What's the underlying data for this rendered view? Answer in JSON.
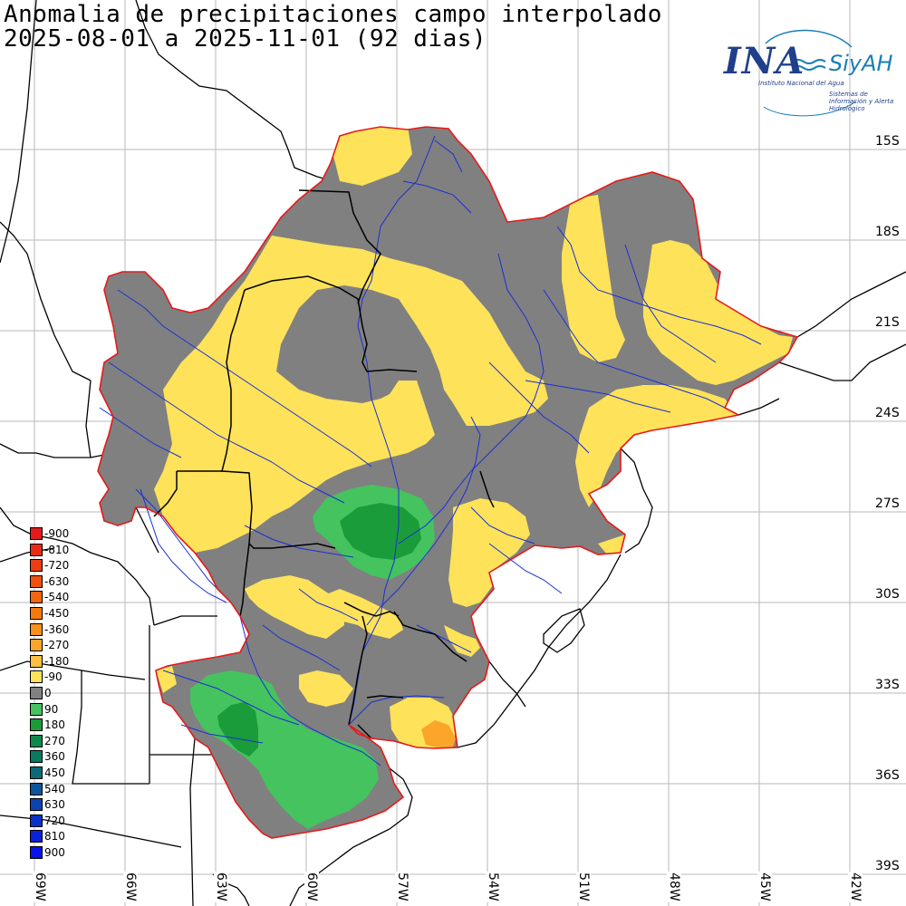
{
  "title": {
    "line1": "Anomalia de precipitaciones campo interpolado",
    "line2": "2025-08-01 a 2025-11-01 (92 dias)"
  },
  "logo": {
    "name": "INA",
    "system": "SiyAH",
    "institute": "Instituto Nacional del Agua",
    "system_full": "Sistemas de Información y Alerta Hidrológico",
    "colors": {
      "primary": "#1f3f8a",
      "accent": "#1b7fb5"
    }
  },
  "latitudes": [
    "15S",
    "18S",
    "21S",
    "24S",
    "27S",
    "30S",
    "33S",
    "36S",
    "39S"
  ],
  "longitudes": [
    "69W",
    "66W",
    "63W",
    "60W",
    "57W",
    "54W",
    "51W",
    "48W",
    "45W",
    "42W"
  ],
  "legend": [
    {
      "label": "-900",
      "color": "#e41a1c"
    },
    {
      "label": "-810",
      "color": "#ea2a16"
    },
    {
      "label": "-720",
      "color": "#ee3d12"
    },
    {
      "label": "-630",
      "color": "#f1510f"
    },
    {
      "label": "-540",
      "color": "#f4650d"
    },
    {
      "label": "-450",
      "color": "#f6790d"
    },
    {
      "label": "-360",
      "color": "#f98f1c"
    },
    {
      "label": "-270",
      "color": "#fba52b"
    },
    {
      "label": "-180",
      "color": "#fcbf3f"
    },
    {
      "label": "-90",
      "color": "#fde25a"
    },
    {
      "label": "0",
      "color": "#808080"
    },
    {
      "label": "90",
      "color": "#45c35e"
    },
    {
      "label": "180",
      "color": "#1a9c3a"
    },
    {
      "label": "270",
      "color": "#0d8a4b"
    },
    {
      "label": "360",
      "color": "#0a7a5f"
    },
    {
      "label": "450",
      "color": "#0a6a78"
    },
    {
      "label": "540",
      "color": "#0b5598"
    },
    {
      "label": "630",
      "color": "#0b43b3"
    },
    {
      "label": "720",
      "color": "#0a30c9"
    },
    {
      "label": "810",
      "color": "#0a22d9"
    },
    {
      "label": "900",
      "color": "#0713ee"
    }
  ],
  "colors": {
    "basin_border": "#e41a1c",
    "rivers": "#1b2fd6",
    "dry": "#fde25a",
    "neutral": "#808080",
    "wet": "#45c35e",
    "very_wet": "#1a9c3a",
    "very_dry": "#fba52b"
  }
}
